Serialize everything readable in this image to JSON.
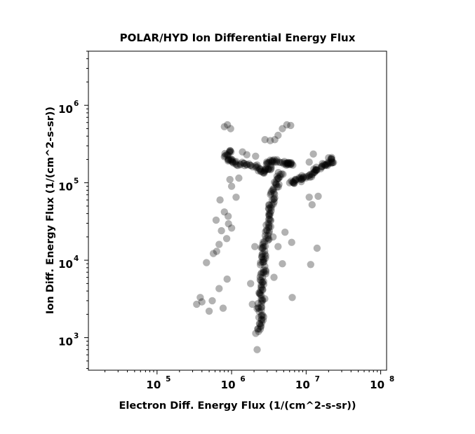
{
  "chart_data": {
    "type": "scatter",
    "title": "POLAR/HYD  Ion Differential Energy Flux",
    "xlabel": "Electron Diff. Energy Flux (1/(cm^2-s-sr))",
    "ylabel": "Ion Diff. Energy Flux (1/(cm^2-s-sr))",
    "xscale": "log",
    "yscale": "log",
    "xlim": [
      12000,
      120000000
    ],
    "ylim": [
      380,
      5000000
    ],
    "x_ticks": [
      {
        "base": "10",
        "exp": "5",
        "value": 100000
      },
      {
        "base": "10",
        "exp": "6",
        "value": 1000000
      },
      {
        "base": "10",
        "exp": "7",
        "value": 10000000
      },
      {
        "base": "10",
        "exp": "8",
        "value": 100000000
      }
    ],
    "y_ticks": [
      {
        "base": "10",
        "exp": "3",
        "value": 1000
      },
      {
        "base": "10",
        "exp": "4",
        "value": 10000
      },
      {
        "base": "10",
        "exp": "5",
        "value": 100000
      },
      {
        "base": "10",
        "exp": "6",
        "value": 1000000
      }
    ],
    "marker_color": "#000000",
    "marker_opacity": 0.3,
    "grid": false,
    "points": [
      [
        2300000.0,
        1200.0
      ],
      [
        2400000.0,
        1500.0
      ],
      [
        2500000.0,
        1900.0
      ],
      [
        2300000.0,
        2400.0
      ],
      [
        2600000.0,
        3000.0
      ],
      [
        2400000.0,
        3800.0
      ],
      [
        2500000.0,
        4800.0
      ],
      [
        2600000.0,
        6000.0
      ],
      [
        2700000.0,
        7500.0
      ],
      [
        2600000.0,
        9500.0
      ],
      [
        2800000.0,
        12000.0
      ],
      [
        2700000.0,
        15000.0
      ],
      [
        2900000.0,
        19000.0
      ],
      [
        3000000.0,
        24000.0
      ],
      [
        3100000.0,
        30000.0
      ],
      [
        3200000.0,
        38000.0
      ],
      [
        3300000.0,
        48000.0
      ],
      [
        3500000.0,
        60000.0
      ],
      [
        3700000.0,
        75000.0
      ],
      [
        4000000.0,
        95000.0
      ],
      [
        4300000.0,
        115000.0
      ],
      [
        4700000.0,
        130000.0
      ],
      [
        3400000.0,
        160000.0
      ],
      [
        2900000.0,
        150000.0
      ],
      [
        2500000.0,
        140000.0
      ],
      [
        2200000.0,
        160000.0
      ],
      [
        1600000.0,
        170000.0
      ],
      [
        1300000.0,
        175000.0
      ],
      [
        1050000.0,
        180000.0
      ],
      [
        900000.0,
        200000.0
      ],
      [
        850000.0,
        230000.0
      ],
      [
        950000.0,
        260000.0
      ],
      [
        6000000.0,
        100000.0
      ],
      [
        7000000.0,
        105000.0
      ],
      [
        8500000.0,
        110000.0
      ],
      [
        10000000.0,
        120000.0
      ],
      [
        12000000.0,
        130000.0
      ],
      [
        14000000.0,
        145000.0
      ],
      [
        16000000.0,
        160000.0
      ],
      [
        19000000.0,
        175000.0
      ],
      [
        22000000.0,
        190000.0
      ],
      [
        20000000.0,
        210000.0
      ],
      [
        5000000.0,
        175000.0
      ],
      [
        5800000.0,
        180000.0
      ],
      [
        6400000.0,
        175000.0
      ],
      [
        4000000.0,
        190000.0
      ],
      [
        3500000.0,
        185000.0
      ],
      [
        3000000.0,
        180000.0
      ],
      [
        800000.0,
        530000.0
      ],
      [
        880000.0,
        560000.0
      ],
      [
        970000.0,
        500000.0
      ],
      [
        5500000.0,
        560000.0
      ],
      [
        6200000.0,
        550000.0
      ],
      [
        4800000.0,
        500000.0
      ],
      [
        4200000.0,
        410000.0
      ],
      [
        3800000.0,
        360000.0
      ],
      [
        2800000.0,
        360000.0
      ],
      [
        3300000.0,
        350000.0
      ],
      [
        770000.0,
        2400.0
      ],
      [
        400000.0,
        2900.0
      ],
      [
        340000.0,
        2700.0
      ],
      [
        380000.0,
        3300.0
      ],
      [
        500000.0,
        2200.0
      ],
      [
        550000.0,
        3000.0
      ],
      [
        680000.0,
        4300.0
      ],
      [
        870000.0,
        5700.0
      ],
      [
        460000.0,
        9300.0
      ],
      [
        570000.0,
        12200.0
      ],
      [
        680000.0,
        16000.0
      ],
      [
        730000.0,
        24000.0
      ],
      [
        910000.0,
        29500.0
      ],
      [
        1000000.0,
        26000.0
      ],
      [
        800000.0,
        42000.0
      ],
      [
        950000.0,
        110000.0
      ],
      [
        700000.0,
        60000.0
      ],
      [
        11500000.0,
        8800.0
      ],
      [
        14000000.0,
        14300.0
      ],
      [
        5200000.0,
        23000.0
      ],
      [
        6400000.0,
        17000.0
      ],
      [
        6500000.0,
        3300.0
      ],
      [
        2200000.0,
        700.0
      ],
      [
        12000000.0,
        52000.0
      ],
      [
        14500000.0,
        67000.0
      ],
      [
        11000000.0,
        65000.0
      ],
      [
        12500000.0,
        235000.0
      ],
      [
        11000000.0,
        185000.0
      ],
      [
        2100000.0,
        220000.0
      ],
      [
        1600000.0,
        230000.0
      ],
      [
        1400000.0,
        250000.0
      ],
      [
        1900000.0,
        2700.0
      ],
      [
        1800000.0,
        5000.0
      ],
      [
        2050000.0,
        15000.0
      ],
      [
        3600000.0,
        20000.0
      ],
      [
        4200000.0,
        15000.0
      ],
      [
        3700000.0,
        6000.0
      ],
      [
        4800000.0,
        9000.0
      ],
      [
        1000000.0,
        90000.0
      ],
      [
        1150000.0,
        65000.0
      ],
      [
        630000.0,
        13000.0
      ],
      [
        860000.0,
        19000.0
      ],
      [
        1250000.0,
        115000.0
      ],
      [
        620000.0,
        33000.0
      ],
      [
        900000.0,
        37000.0
      ]
    ]
  }
}
